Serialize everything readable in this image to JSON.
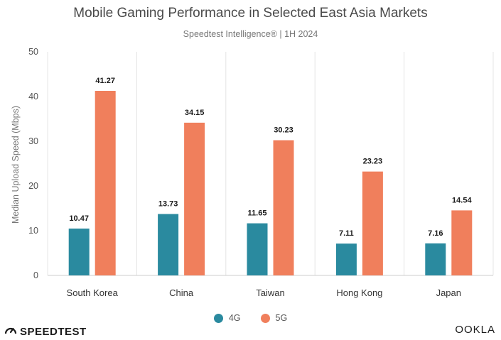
{
  "header": {
    "title": "Mobile Gaming Performance in Selected East Asia Markets",
    "subtitle": "Speedtest Intelligence® | 1H 2024"
  },
  "chart_data": {
    "type": "bar",
    "title": "Mobile Gaming Performance in Selected East Asia Markets",
    "subtitle": "Speedtest Intelligence® | 1H 2024",
    "xlabel": "",
    "ylabel": "Median Upload Speed (Mbps)",
    "ylim": [
      0,
      50
    ],
    "yticks": [
      0,
      10,
      20,
      30,
      40,
      50
    ],
    "grid": "vertical category separators",
    "legend_position": "bottom",
    "categories": [
      "South Korea",
      "China",
      "Taiwan",
      "Hong Kong",
      "Japan"
    ],
    "series": [
      {
        "name": "4G",
        "color": "#2a8a9f",
        "values": [
          10.47,
          13.73,
          11.65,
          7.11,
          7.16
        ]
      },
      {
        "name": "5G",
        "color": "#f07f5c",
        "values": [
          41.27,
          34.15,
          30.23,
          23.23,
          14.54
        ]
      }
    ]
  },
  "footer": {
    "brand_left": "SPEEDTEST",
    "brand_right": "OOKLA"
  },
  "icons": {
    "brand_left_icon": "speedometer-icon"
  }
}
